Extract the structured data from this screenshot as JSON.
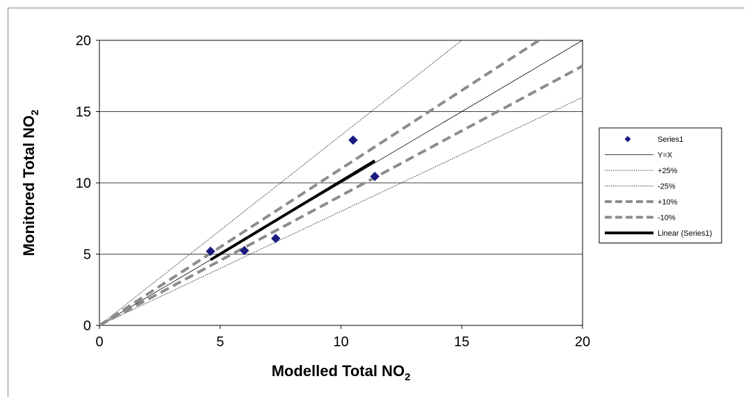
{
  "chart_data": {
    "type": "scatter",
    "xlabel": "Modelled Total NO",
    "xlabel_sub": "2",
    "ylabel": "Monitored Total NO",
    "ylabel_sub": "2",
    "xlim": [
      0,
      20
    ],
    "ylim": [
      0,
      20
    ],
    "xticks": [
      "0",
      "5",
      "10",
      "15",
      "20"
    ],
    "yticks": [
      "0",
      "5",
      "10",
      "15",
      "20"
    ],
    "grid": "horizontal",
    "legend_position": "right",
    "series": [
      {
        "name": "Series1",
        "kind": "markers",
        "color": "#1a1a80",
        "marker": "diamond",
        "x": [
          4.6,
          6.0,
          7.3,
          10.5,
          11.4
        ],
        "y": [
          5.2,
          5.25,
          6.1,
          13.0,
          10.45
        ]
      },
      {
        "name": "Y=X",
        "kind": "line",
        "style": "solid-thin",
        "color": "#000000",
        "x": [
          0,
          20
        ],
        "y": [
          0,
          20
        ]
      },
      {
        "name": "+25%",
        "kind": "line",
        "style": "dotted-thin",
        "color": "#000000",
        "x": [
          0,
          15
        ],
        "y": [
          0,
          20
        ]
      },
      {
        "name": "-25%",
        "kind": "line",
        "style": "dotted-thin",
        "color": "#000000",
        "x": [
          0,
          20
        ],
        "y": [
          0,
          16
        ]
      },
      {
        "name": "+10%",
        "kind": "line",
        "style": "dashed-thick",
        "color": "#8c8c8c",
        "x": [
          0,
          18.2
        ],
        "y": [
          0,
          20
        ]
      },
      {
        "name": "-10%",
        "kind": "line",
        "style": "dashed-thick",
        "color": "#8c8c8c",
        "x": [
          0,
          20
        ],
        "y": [
          0,
          18.2
        ]
      },
      {
        "name": "Linear (Series1)",
        "kind": "line",
        "style": "solid-thick",
        "color": "#000000",
        "x": [
          4.6,
          11.4
        ],
        "y": [
          4.6,
          11.55
        ]
      }
    ]
  }
}
